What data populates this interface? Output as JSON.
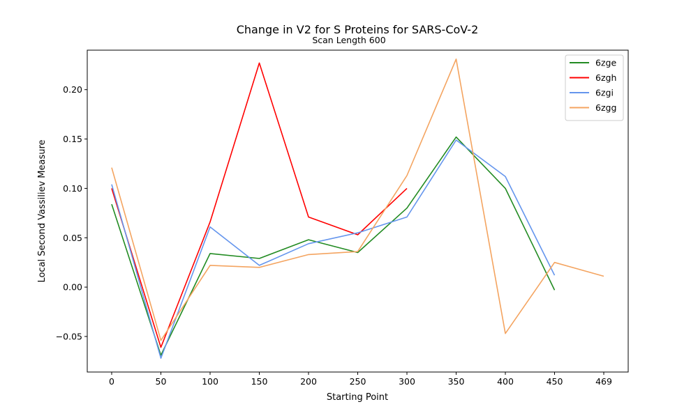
{
  "chart_data": {
    "type": "line",
    "title": "Change in V2 for S Proteins for SARS-CoV-2",
    "subtitle": "Scan Length 600",
    "xlabel": "Starting Point",
    "ylabel": "Local Second Vassiliev Measure",
    "x_ticks": [
      "0",
      "50",
      "100",
      "150",
      "200",
      "250",
      "300",
      "350",
      "400",
      "450",
      "469"
    ],
    "y_ticks": [
      "−0.05",
      "0.00",
      "0.05",
      "0.10",
      "0.15",
      "0.20"
    ],
    "ylim": [
      -0.086,
      0.24
    ],
    "grid": false,
    "legend_position": "top-right",
    "series": [
      {
        "name": "6zge",
        "color": "#228b22",
        "x": [
          0,
          50,
          100,
          150,
          200,
          250,
          300,
          350,
          400,
          450
        ],
        "values": [
          0.084,
          -0.069,
          0.034,
          0.029,
          0.048,
          0.035,
          0.08,
          0.152,
          0.1,
          -0.003
        ]
      },
      {
        "name": "6zgh",
        "color": "#ff0000",
        "x": [
          0,
          50,
          100,
          150,
          200,
          250,
          300
        ],
        "values": [
          0.1,
          -0.061,
          0.066,
          0.227,
          0.071,
          0.053,
          0.1
        ]
      },
      {
        "name": "6zgi",
        "color": "#6495ed",
        "x": [
          0,
          50,
          100,
          150,
          200,
          250,
          300,
          350,
          400,
          450
        ],
        "values": [
          0.104,
          -0.072,
          0.061,
          0.022,
          0.044,
          0.055,
          0.071,
          0.149,
          0.112,
          0.012
        ]
      },
      {
        "name": "6zgg",
        "color": "#f4a460",
        "x": [
          0,
          50,
          100,
          150,
          200,
          250,
          300,
          350,
          400,
          450,
          469
        ],
        "values": [
          0.121,
          -0.054,
          0.022,
          0.02,
          0.033,
          0.036,
          0.113,
          0.231,
          -0.047,
          0.025,
          0.011
        ]
      }
    ]
  }
}
